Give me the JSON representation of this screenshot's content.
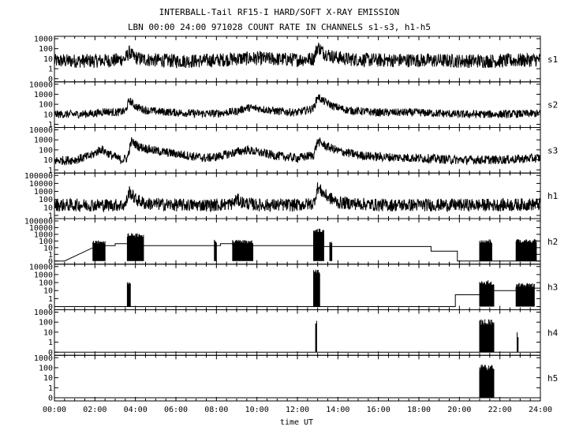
{
  "chart_data": {
    "type": "line",
    "title": "INTERBALL-Tail RF15-I HARD/SOFT X-RAY EMISSION",
    "subtitle": "LBN 00:00 24:00 971028  COUNT RATE IN CHANNELS s1-s3, h1-h5",
    "xlabel": "time UT",
    "x_ticks": [
      "00:00",
      "02:00",
      "04:00",
      "06:00",
      "08:00",
      "10:00",
      "12:00",
      "14:00",
      "16:00",
      "18:00",
      "20:00",
      "22:00",
      "24:00"
    ],
    "xlim": [
      0,
      24
    ],
    "y_scale": "log",
    "grid": false,
    "panels": [
      {
        "name": "s1",
        "y_ticks": [
          "1000",
          "100",
          "10",
          "1",
          "0"
        ],
        "tick_values": [
          1000,
          100,
          10,
          1,
          0
        ],
        "x_hours": [
          0,
          1,
          2,
          3,
          3.5,
          3.7,
          3.9,
          4.3,
          5,
          6,
          7,
          8,
          9,
          10,
          11,
          12,
          12.8,
          13.0,
          13.3,
          13.8,
          14.5,
          16,
          18,
          20,
          22,
          23.9
        ],
        "values": [
          6,
          6,
          6,
          7,
          10,
          45,
          15,
          9,
          7,
          6,
          6,
          7,
          10,
          11,
          9,
          8,
          10,
          160,
          40,
          15,
          9,
          7,
          7,
          6,
          6,
          8
        ],
        "noise": 0.7
      },
      {
        "name": "s2",
        "y_ticks": [
          "10000",
          "1000",
          "100",
          "10",
          "1"
        ],
        "tick_values": [
          10000,
          1000,
          100,
          10,
          1
        ],
        "x_hours": [
          0,
          1,
          2,
          2.5,
          3,
          3.5,
          3.7,
          4.0,
          4.5,
          5,
          6,
          7,
          8,
          9,
          9.5,
          10,
          11,
          12,
          12.8,
          13.0,
          13.3,
          13.8,
          14.5,
          16,
          18,
          20,
          22,
          23.9
        ],
        "values": [
          10,
          10,
          12,
          20,
          15,
          20,
          250,
          60,
          25,
          20,
          15,
          12,
          12,
          20,
          45,
          40,
          20,
          15,
          40,
          600,
          200,
          60,
          25,
          15,
          15,
          10,
          10,
          12
        ],
        "noise": 0.4
      },
      {
        "name": "s3",
        "y_ticks": [
          "10000",
          "1000",
          "100",
          "10",
          "1"
        ],
        "tick_values": [
          10000,
          1000,
          100,
          10,
          1
        ],
        "x_hours": [
          0,
          1,
          1.8,
          2.3,
          2.8,
          3.3,
          3.6,
          3.8,
          4.2,
          5,
          6,
          7,
          7.5,
          8,
          9,
          9.5,
          10,
          11,
          12,
          12.8,
          13.0,
          13.4,
          14,
          15,
          16,
          18,
          20,
          22,
          23.9
        ],
        "values": [
          8,
          10,
          25,
          120,
          30,
          10,
          15,
          700,
          200,
          80,
          40,
          20,
          15,
          20,
          60,
          100,
          60,
          25,
          15,
          30,
          700,
          250,
          80,
          30,
          20,
          15,
          10,
          10,
          15
        ],
        "noise": 0.45
      },
      {
        "name": "h1",
        "y_ticks": [
          "100000",
          "10000",
          "1000",
          "100",
          "10",
          "1"
        ],
        "tick_values": [
          100000,
          10000,
          1000,
          100,
          10,
          1
        ],
        "x_hours": [
          0,
          2,
          3,
          3.5,
          3.7,
          4.0,
          4.5,
          6,
          8,
          8.8,
          9,
          9.3,
          10,
          12,
          12.8,
          13.0,
          13.4,
          14,
          16,
          18,
          20,
          22,
          23.9
        ],
        "values": [
          20,
          20,
          20,
          20,
          1000,
          100,
          30,
          20,
          20,
          30,
          100,
          40,
          20,
          20,
          30,
          3000,
          300,
          40,
          20,
          20,
          20,
          20,
          25
        ],
        "noise": 0.8
      },
      {
        "name": "h2",
        "y_ticks": [
          "100000",
          "10000",
          "1000",
          "100",
          "10",
          "1",
          "0"
        ],
        "tick_values": [
          100000,
          10000,
          1000,
          100,
          10,
          1,
          0
        ],
        "steps": [
          [
            0,
            0.5,
            0
          ],
          [
            1.9,
            2.4,
            10
          ],
          [
            2.4,
            3.0,
            20
          ],
          [
            3.0,
            3.7,
            40
          ],
          [
            3.7,
            4.3,
            200
          ],
          [
            4.3,
            8.2,
            20
          ],
          [
            8.2,
            8.8,
            40
          ],
          [
            8.8,
            12.8,
            20
          ],
          [
            12.8,
            13.3,
            1000
          ],
          [
            13.3,
            18.6,
            15
          ],
          [
            18.6,
            19.9,
            3
          ],
          [
            19.9,
            24,
            0
          ]
        ],
        "bursts": [
          [
            1.9,
            2.5,
            150
          ],
          [
            3.6,
            4.4,
            1500
          ],
          [
            7.9,
            8.0,
            150
          ],
          [
            8.8,
            9.8,
            150
          ],
          [
            12.8,
            13.3,
            8000
          ],
          [
            13.6,
            13.7,
            100
          ],
          [
            21.0,
            21.6,
            200
          ],
          [
            22.8,
            23.8,
            200
          ]
        ]
      },
      {
        "name": "h3",
        "y_ticks": [
          "10000",
          "1000",
          "100",
          "10",
          "1",
          "0"
        ],
        "tick_values": [
          10000,
          1000,
          100,
          10,
          1,
          0
        ],
        "steps": [
          [
            0,
            19.8,
            0
          ],
          [
            19.8,
            21.0,
            3
          ],
          [
            21.0,
            22.8,
            10
          ],
          [
            22.8,
            24,
            20
          ]
        ],
        "bursts": [
          [
            3.6,
            3.75,
            200
          ],
          [
            12.8,
            13.1,
            5000
          ],
          [
            21.0,
            21.7,
            200
          ],
          [
            22.8,
            23.7,
            100
          ]
        ]
      },
      {
        "name": "h4",
        "y_ticks": [
          "1000",
          "100",
          "10",
          "1",
          "0"
        ],
        "tick_values": [
          1000,
          100,
          10,
          1,
          0
        ],
        "steps": [
          [
            0,
            24,
            0
          ]
        ],
        "bursts": [
          [
            12.9,
            12.95,
            200
          ],
          [
            21.0,
            21.7,
            200
          ],
          [
            22.85,
            22.9,
            10
          ]
        ]
      },
      {
        "name": "h5",
        "y_ticks": [
          "1000",
          "100",
          "10",
          "1",
          "0"
        ],
        "tick_values": [
          1000,
          100,
          10,
          1,
          0
        ],
        "steps": [
          [
            0,
            24,
            0
          ]
        ],
        "bursts": [
          [
            21.0,
            21.7,
            200
          ]
        ]
      }
    ]
  }
}
